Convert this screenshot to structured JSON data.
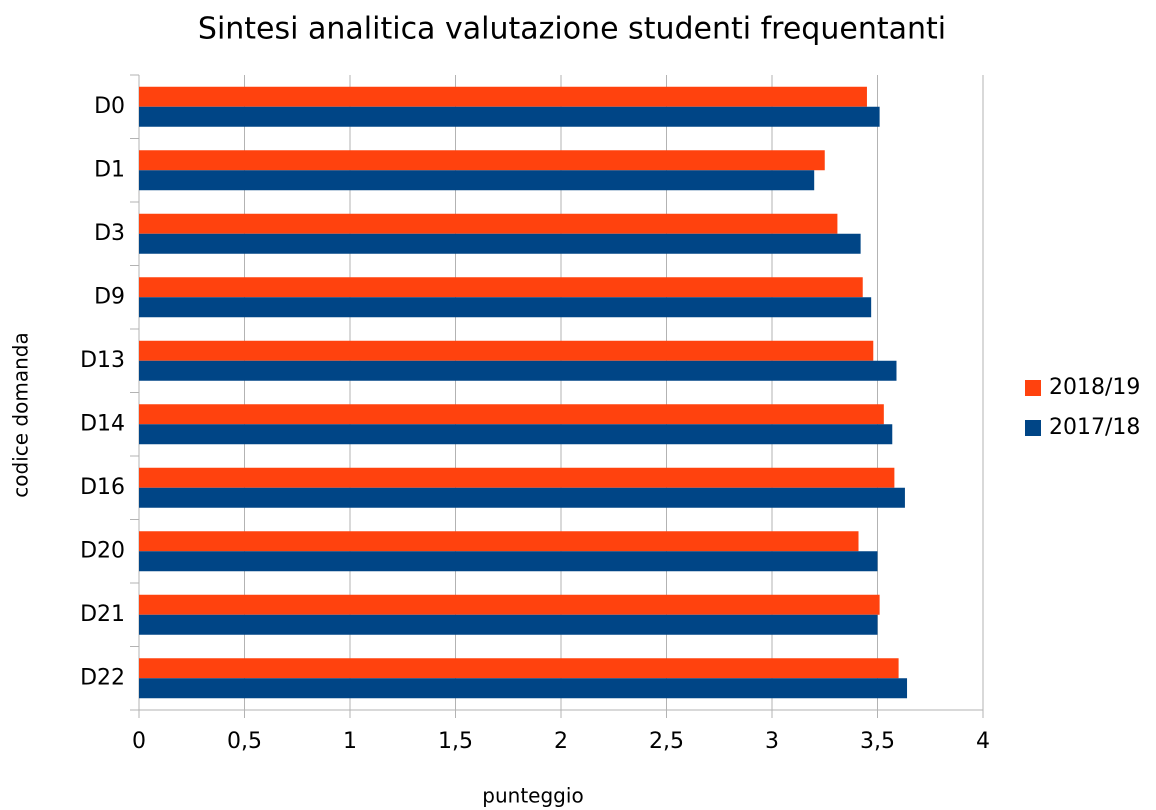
{
  "chart_data": {
    "type": "hbar",
    "title": "Sintesi analitica valutazione studenti frequentanti",
    "x_label": "punteggio",
    "y_label": "codice domanda",
    "categories": [
      "D0",
      "D1",
      "D3",
      "D9",
      "D13",
      "D14",
      "D16",
      "D20",
      "D21",
      "D22"
    ],
    "series": [
      {
        "name": "2018/19",
        "color": "#ff420e",
        "values": [
          3.45,
          3.25,
          3.31,
          3.43,
          3.48,
          3.53,
          3.58,
          3.41,
          3.51,
          3.6
        ]
      },
      {
        "name": "2017/18",
        "color": "#004586",
        "values": [
          3.51,
          3.2,
          3.42,
          3.47,
          3.59,
          3.57,
          3.63,
          3.5,
          3.5,
          3.64
        ]
      }
    ],
    "xlim": [
      0,
      4
    ],
    "xticks": [
      0,
      {
        "value": 0.5,
        "label": "0,5"
      },
      1,
      {
        "value": 1.5,
        "label": "1,5"
      },
      2,
      {
        "value": 2.5,
        "label": "2,5"
      },
      3,
      {
        "value": 3.5,
        "label": "3,5"
      },
      4
    ],
    "grid": true,
    "legend": "right"
  }
}
